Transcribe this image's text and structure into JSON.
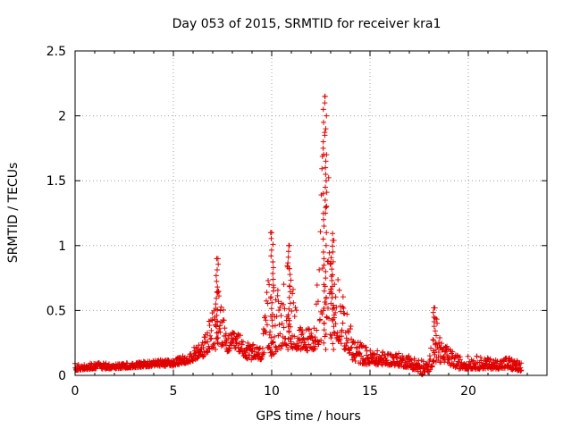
{
  "chart_data": {
    "type": "scatter",
    "title": "Day 053 of 2015, SRMTID for receiver kra1",
    "xlabel": "GPS time / hours",
    "ylabel": "SRMTID / TECUs",
    "xlim": [
      0,
      24
    ],
    "ylim": [
      0,
      2.5
    ],
    "x_ticks": [
      "0",
      "5",
      "10",
      "15",
      "20"
    ],
    "y_ticks": [
      "0",
      "0.5",
      "1",
      "1.5",
      "2",
      "2.5"
    ],
    "grid": true,
    "marker": "plus",
    "series_color": "#e00000",
    "x_range_of_data": [
      0,
      22.7
    ],
    "peaks": [
      {
        "x": 7.2,
        "y": 0.9
      },
      {
        "x": 10.0,
        "y": 1.1
      },
      {
        "x": 10.9,
        "y": 1.0
      },
      {
        "x": 12.7,
        "y": 2.15
      },
      {
        "x": 13.1,
        "y": 1.04
      },
      {
        "x": 18.3,
        "y": 0.52
      }
    ],
    "envelope": [
      [
        0.0,
        0.04,
        0.08
      ],
      [
        1.0,
        0.05,
        0.1
      ],
      [
        2.0,
        0.05,
        0.09
      ],
      [
        3.0,
        0.06,
        0.1
      ],
      [
        4.0,
        0.07,
        0.12
      ],
      [
        5.0,
        0.07,
        0.12
      ],
      [
        5.8,
        0.1,
        0.18
      ],
      [
        6.5,
        0.14,
        0.28
      ],
      [
        7.0,
        0.2,
        0.5
      ],
      [
        7.3,
        0.25,
        0.85
      ],
      [
        7.7,
        0.18,
        0.3
      ],
      [
        8.2,
        0.2,
        0.35
      ],
      [
        8.8,
        0.12,
        0.25
      ],
      [
        9.5,
        0.12,
        0.22
      ],
      [
        10.0,
        0.15,
        1.05
      ],
      [
        10.4,
        0.2,
        0.55
      ],
      [
        10.9,
        0.22,
        0.95
      ],
      [
        11.5,
        0.18,
        0.35
      ],
      [
        12.2,
        0.2,
        0.4
      ],
      [
        12.7,
        0.3,
        2.1
      ],
      [
        13.2,
        0.3,
        1.0
      ],
      [
        13.7,
        0.2,
        0.55
      ],
      [
        14.2,
        0.1,
        0.3
      ],
      [
        15.0,
        0.08,
        0.2
      ],
      [
        16.0,
        0.08,
        0.18
      ],
      [
        17.0,
        0.06,
        0.16
      ],
      [
        17.7,
        0.0,
        0.12
      ],
      [
        18.0,
        0.03,
        0.1
      ],
      [
        18.3,
        0.1,
        0.5
      ],
      [
        18.7,
        0.1,
        0.25
      ],
      [
        19.5,
        0.05,
        0.15
      ],
      [
        20.5,
        0.05,
        0.15
      ],
      [
        21.5,
        0.05,
        0.12
      ],
      [
        22.0,
        0.05,
        0.15
      ],
      [
        22.7,
        0.03,
        0.1
      ]
    ]
  }
}
